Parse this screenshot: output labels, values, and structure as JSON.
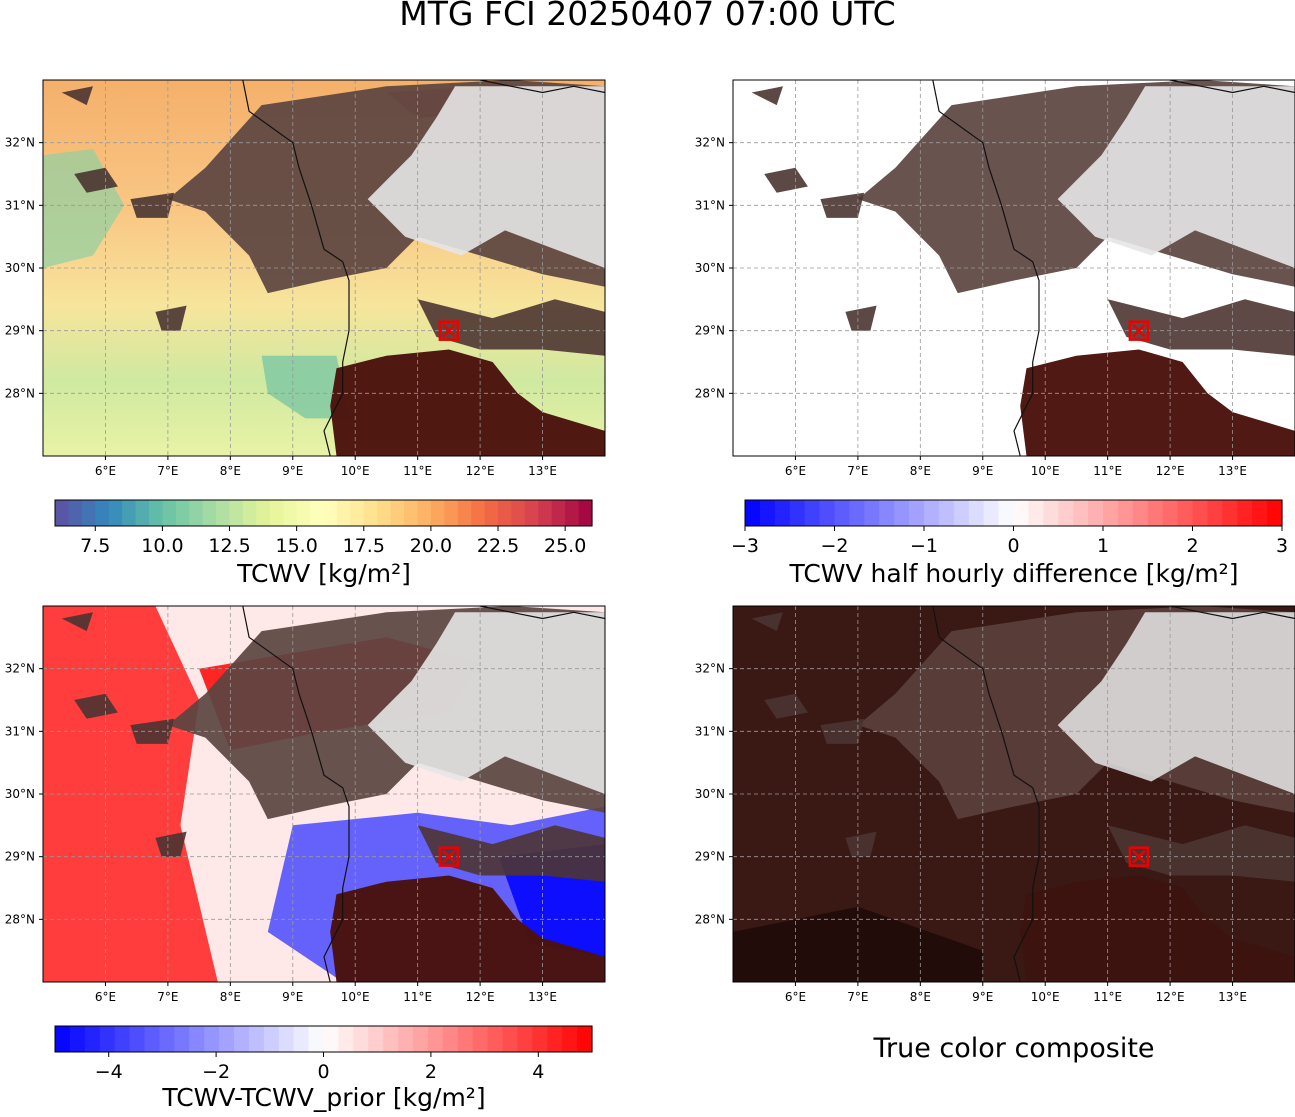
{
  "title": "MTG FCI 20250407 07:00 UTC",
  "map": {
    "lon_ticks": [
      "6°E",
      "7°E",
      "8°E",
      "9°E",
      "10°E",
      "11°E",
      "12°E",
      "13°E"
    ],
    "lat_ticks": [
      "32°N",
      "31°N",
      "30°N",
      "29°N",
      "28°N"
    ],
    "lon_range": [
      5.0,
      14.0
    ],
    "lat_range": [
      27.0,
      33.0
    ],
    "gridlines": true,
    "marker": {
      "lon": 11.5,
      "lat": 29.0,
      "symbol": "boxed-x",
      "color": "#ee0000"
    }
  },
  "panels": [
    {
      "id": "tcwv",
      "colorbar": {
        "label": "TCWV [kg/m²]",
        "ticks": [
          "7.5",
          "10.0",
          "12.5",
          "15.0",
          "17.5",
          "20.0",
          "22.5",
          "25.0"
        ],
        "tick_values": [
          7.5,
          10.0,
          12.5,
          15.0,
          17.5,
          20.0,
          22.5,
          25.0
        ],
        "range": [
          6.0,
          26.0
        ],
        "colormap": "Spectral_r",
        "colors": [
          "#5e4fa2",
          "#3288bd",
          "#66c2a5",
          "#abdda4",
          "#e6f598",
          "#ffffbf",
          "#fee08b",
          "#fdae61",
          "#f46d43",
          "#d53e4f",
          "#9e0142"
        ]
      }
    },
    {
      "id": "tcwv-diff",
      "colorbar": {
        "label": "TCWV half hourly difference [kg/m²]",
        "ticks": [
          "−3",
          "−2",
          "−1",
          "0",
          "1",
          "2",
          "3"
        ],
        "tick_values": [
          -3,
          -2,
          -1,
          0,
          1,
          2,
          3
        ],
        "range": [
          -3,
          3
        ],
        "colormap": "bwr",
        "colors": [
          "#0000ff",
          "#ffffff",
          "#ff0000"
        ]
      }
    },
    {
      "id": "tcwv-prior",
      "colorbar": {
        "label": "TCWV-TCWV_prior [kg/m²]",
        "ticks": [
          "−4",
          "−2",
          "0",
          "2",
          "4"
        ],
        "tick_values": [
          -4,
          -2,
          0,
          2,
          4
        ],
        "range": [
          -5,
          5
        ],
        "colormap": "bwr",
        "colors": [
          "#0000ff",
          "#ffffff",
          "#ff0000"
        ]
      }
    },
    {
      "id": "true-color",
      "label": "True color composite"
    }
  ]
}
